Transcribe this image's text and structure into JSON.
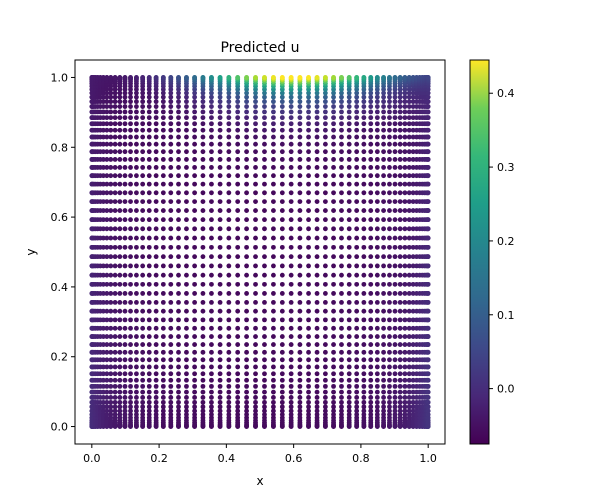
{
  "chart_data": {
    "type": "scatter",
    "title": "Predicted u",
    "xlabel": "x",
    "ylabel": "y",
    "xlim": [
      -0.05,
      1.05
    ],
    "ylim": [
      -0.05,
      1.05
    ],
    "x_ticks": [
      0.0,
      0.2,
      0.4,
      0.6,
      0.8,
      1.0
    ],
    "x_tick_labels": [
      "0.0",
      "0.2",
      "0.4",
      "0.6",
      "0.8",
      "1.0"
    ],
    "y_ticks": [
      0.0,
      0.2,
      0.4,
      0.6,
      0.8,
      1.0
    ],
    "y_tick_labels": [
      "0.0",
      "0.2",
      "0.4",
      "0.6",
      "0.8",
      "1.0"
    ],
    "grid": false,
    "point_grid": {
      "x_range": [
        0.0,
        1.0
      ],
      "y_range": [
        0.0,
        1.0
      ],
      "spacing": "clustered near the boundaries (Chebyshev-like)",
      "value_field": "max near top edge y=1 at x≈0.6 (≈0.45), falls to ≈-0.07 in the interior and lower corners"
    },
    "colormap": "viridis",
    "colorbar": {
      "min": -0.075,
      "max": 0.445,
      "ticks": [
        0.0,
        0.1,
        0.2,
        0.3,
        0.4
      ],
      "tick_labels": [
        "0.0",
        "0.1",
        "0.2",
        "0.3",
        "0.4"
      ]
    }
  }
}
